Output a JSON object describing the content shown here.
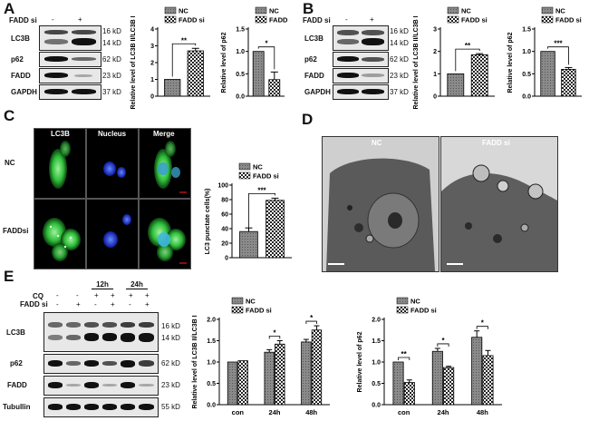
{
  "panels": {
    "A": {
      "letter": "A",
      "condition_label": "FADD si",
      "lanes": [
        "-",
        "+"
      ],
      "rows": [
        {
          "label": "LC3B",
          "kd": [
            "16 kD",
            "14 kD"
          ]
        },
        {
          "label": "p62",
          "kd": [
            "62 kD"
          ]
        },
        {
          "label": "FADD",
          "kd": [
            "23 kD"
          ]
        },
        {
          "label": "GAPDH",
          "kd": [
            "37 kD"
          ]
        }
      ]
    },
    "B": {
      "letter": "B",
      "condition_label": "FADD si",
      "lanes": [
        "-",
        "+"
      ],
      "rows": [
        {
          "label": "LC3B",
          "kd": [
            "16 kD",
            "14 kD"
          ]
        },
        {
          "label": "p62",
          "kd": [
            "62 kD"
          ]
        },
        {
          "label": "FADD",
          "kd": [
            "23 kD"
          ]
        },
        {
          "label": "GAPDH",
          "kd": [
            "37 kD"
          ]
        }
      ]
    },
    "C": {
      "letter": "C",
      "columns": [
        "LC3B",
        "Nucleus",
        "Merge"
      ],
      "rows": [
        "NC",
        "FADDsi"
      ]
    },
    "D": {
      "letter": "D",
      "titles": [
        "NC",
        "FADD si"
      ]
    },
    "E": {
      "letter": "E",
      "cq_label": "CQ",
      "fadd_label": "FADD si",
      "time_labels": [
        "12h",
        "24h"
      ],
      "cq_signs": [
        "-",
        "-",
        "+",
        "+",
        "+",
        "+"
      ],
      "fadd_signs": [
        "-",
        "+",
        "-",
        "+",
        "-",
        "+"
      ],
      "rows": [
        {
          "label": "LC3B",
          "kd": [
            "16 kD",
            "14 kD"
          ]
        },
        {
          "label": "p62",
          "kd": [
            "62 kD"
          ]
        },
        {
          "label": "FADD",
          "kd": [
            "23 kD"
          ]
        },
        {
          "label": "Tubullin",
          "kd": [
            "55 kD"
          ]
        }
      ]
    }
  },
  "colors": {
    "nc_fill": "#909090",
    "fadd_fill": "#ffffff",
    "fluor_green": "#2fbf3a",
    "fluor_blue": "#1e3cff"
  },
  "chart_data": [
    {
      "id": "A1",
      "type": "bar",
      "categories": [
        "NC",
        "FADD si"
      ],
      "values": [
        1.0,
        2.7
      ],
      "errors": [
        0,
        0.15
      ],
      "ylabel": "Relative level of LC3B II/LC3B I",
      "ylim": [
        0,
        4
      ],
      "yticks": [
        0,
        1,
        2,
        3,
        4
      ],
      "legend": [
        "NC",
        "FADD si"
      ],
      "legend_position": "top",
      "significance": "**"
    },
    {
      "id": "A2",
      "type": "bar",
      "categories": [
        "NC",
        "FADD si"
      ],
      "values": [
        1.0,
        0.37
      ],
      "errors": [
        0,
        0.17
      ],
      "ylabel": "Relative level of p62",
      "ylim": [
        0,
        1.5
      ],
      "yticks": [
        0.0,
        0.5,
        1.0,
        1.5
      ],
      "legend": [
        "NC",
        "FADD si"
      ],
      "legend_position": "top",
      "significance": "*"
    },
    {
      "id": "B1",
      "type": "bar",
      "categories": [
        "NC",
        "FADD si"
      ],
      "values": [
        1.0,
        1.85
      ],
      "errors": [
        0,
        0.05
      ],
      "ylabel": "Relative level of LC3B II/LC3B I",
      "ylim": [
        0,
        3
      ],
      "yticks": [
        0,
        1,
        2,
        3
      ],
      "legend": [
        "NC",
        "FADD si"
      ],
      "legend_position": "top",
      "significance": "**"
    },
    {
      "id": "B2",
      "type": "bar",
      "categories": [
        "NC",
        "FADD si"
      ],
      "values": [
        1.0,
        0.6
      ],
      "errors": [
        0,
        0.04
      ],
      "ylabel": "Relative level of p62",
      "ylim": [
        0,
        1.5
      ],
      "yticks": [
        0.0,
        0.5,
        1.0,
        1.5
      ],
      "legend": [
        "NC",
        "FADD si"
      ],
      "legend_position": "top",
      "significance": "***"
    },
    {
      "id": "C1",
      "type": "bar",
      "categories": [
        "NC",
        "FADD si"
      ],
      "values": [
        36,
        79
      ],
      "errors": [
        5,
        3
      ],
      "ylabel": "LC3 punctate cells(%)",
      "ylim": [
        0,
        100
      ],
      "yticks": [
        0,
        20,
        40,
        60,
        80,
        100
      ],
      "legend": [
        "NC",
        "FADD si"
      ],
      "legend_position": "top",
      "significance": "***"
    },
    {
      "id": "E1",
      "type": "bar",
      "categories": [
        "con",
        "24h",
        "48h"
      ],
      "series": [
        {
          "name": "NC",
          "values": [
            1.0,
            1.23,
            1.47
          ],
          "errors": [
            0,
            0.06,
            0.06
          ]
        },
        {
          "name": "FADD si",
          "values": [
            1.03,
            1.42,
            1.75
          ],
          "errors": [
            0,
            0.08,
            0.1
          ]
        }
      ],
      "ylabel": "Relative level of LC3B II/LC3B I",
      "ylim": [
        0,
        2.0
      ],
      "yticks": [
        0.0,
        0.5,
        1.0,
        1.5,
        2.0
      ],
      "legend_position": "top-left",
      "significance": [
        "*",
        "*"
      ]
    },
    {
      "id": "E2",
      "type": "bar",
      "categories": [
        "con",
        "24h",
        "48h"
      ],
      "series": [
        {
          "name": "NC",
          "values": [
            1.0,
            1.25,
            1.58
          ],
          "errors": [
            0,
            0.07,
            0.15
          ]
        },
        {
          "name": "FADD si",
          "values": [
            0.52,
            0.87,
            1.15
          ],
          "errors": [
            0.06,
            0.03,
            0.12
          ]
        }
      ],
      "ylabel": "Relative level of p62",
      "ylim": [
        0,
        2.0
      ],
      "yticks": [
        0.0,
        0.5,
        1.0,
        1.5,
        2.0
      ],
      "legend_position": "top-left",
      "significance": [
        "**",
        "*",
        "*"
      ]
    }
  ]
}
